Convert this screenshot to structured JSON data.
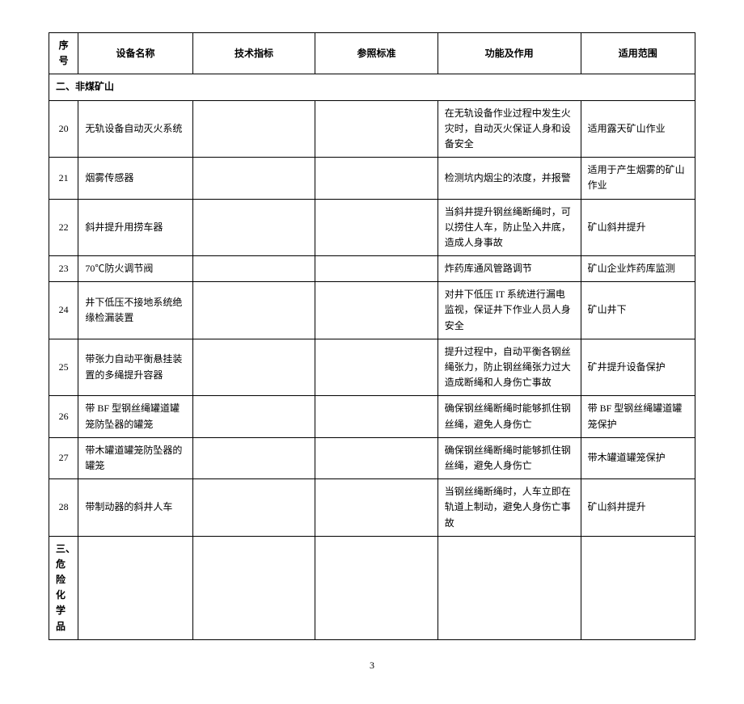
{
  "headers": {
    "seq": "序号",
    "name": "设备名称",
    "tech": "技术指标",
    "std": "参照标准",
    "func": "功能及作用",
    "scope": "适用范围"
  },
  "section2": "二、非煤矿山",
  "section3": "三、危险化学品",
  "rows": [
    {
      "seq": "20",
      "name": "无轨设备自动灭火系统",
      "tech": "",
      "std": "",
      "func": "在无轨设备作业过程中发生火灾时，自动灭火保证人身和设备安全",
      "scope": "适用露天矿山作业"
    },
    {
      "seq": "21",
      "name": "烟雾传感器",
      "tech": "",
      "std": "",
      "func": "检测坑内烟尘的浓度，并报警",
      "scope": "适用于产生烟雾的矿山作业"
    },
    {
      "seq": "22",
      "name": "斜井提升用捞车器",
      "tech": "",
      "std": "",
      "func": "当斜井提升钢丝绳断绳时，可以捞住人车，防止坠入井底，造成人身事故",
      "scope": "矿山斜井提升"
    },
    {
      "seq": "23",
      "name": "70℃防火调节阀",
      "tech": "",
      "std": "",
      "func": "炸药库通风管路调节",
      "scope": "矿山企业炸药库监测"
    },
    {
      "seq": "24",
      "name": "井下低压不接地系统绝缘检漏装置",
      "tech": "",
      "std": "",
      "func": "对井下低压 IT 系统进行漏电监视，保证井下作业人员人身安全",
      "scope": "矿山井下"
    },
    {
      "seq": "25",
      "name": "带张力自动平衡悬挂装置的多绳提升容器",
      "tech": "",
      "std": "",
      "func": "提升过程中，自动平衡各钢丝绳张力，防止钢丝绳张力过大造成断绳和人身伤亡事故",
      "scope": "矿井提升设备保护"
    },
    {
      "seq": "26",
      "name": "带 BF 型钢丝绳罐道罐笼防坠器的罐笼",
      "tech": "",
      "std": "",
      "func": "确保钢丝绳断绳时能够抓住钢丝绳，避免人身伤亡",
      "scope": "带 BF 型钢丝绳罐道罐笼保护"
    },
    {
      "seq": "27",
      "name": "带木罐道罐笼防坠器的罐笼",
      "tech": "",
      "std": "",
      "func": "确保钢丝绳断绳时能够抓住钢丝绳，避免人身伤亡",
      "scope": "带木罐道罐笼保护"
    },
    {
      "seq": "28",
      "name": "带制动器的斜井人车",
      "tech": "",
      "std": "",
      "func": "当钢丝绳断绳时，人车立即在轨道上制动，避免人身伤亡事故",
      "scope": "矿山斜井提升"
    }
  ],
  "page_number": "3"
}
